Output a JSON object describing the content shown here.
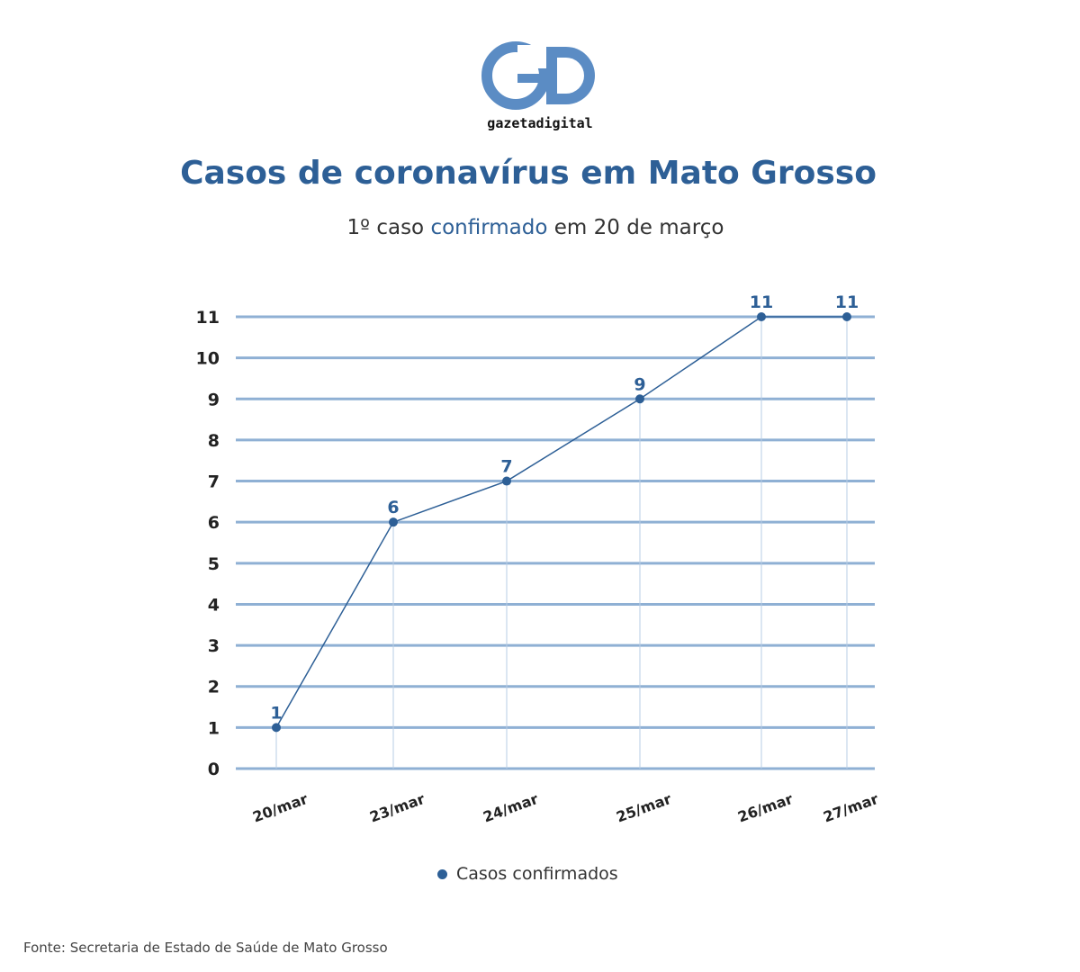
{
  "brand": {
    "logo_letters": "GD",
    "name": "gazetadigital",
    "color": "#2d5f96"
  },
  "header": {
    "title": "Casos de coronavírus em Mato Grosso",
    "subtitle_prefix": "1º caso ",
    "subtitle_highlight": "confirmado",
    "subtitle_suffix": " em 20 de março"
  },
  "legend": {
    "label": "Casos confirmados"
  },
  "footer": {
    "source": "Fonte: Secretaria de Estado de Saúde de Mato Grosso"
  },
  "chart_data": {
    "type": "line",
    "title": "Casos de coronavírus em Mato Grosso",
    "subtitle": "1º caso confirmado em 20 de março",
    "categories": [
      "20/mar",
      "23/mar",
      "24/mar",
      "25/mar",
      "26/mar",
      "27/mar"
    ],
    "series": [
      {
        "name": "Casos confirmados",
        "values": [
          1,
          6,
          7,
          9,
          11,
          11
        ],
        "color": "#2d5f96"
      }
    ],
    "y_ticks": [
      0,
      1,
      2,
      3,
      4,
      5,
      6,
      7,
      8,
      9,
      10,
      11
    ],
    "ylim": [
      0,
      11
    ],
    "grid": true,
    "legend_position": "bottom",
    "source": "Fonte: Secretaria de Estado de Saúde de Mato Grosso"
  }
}
